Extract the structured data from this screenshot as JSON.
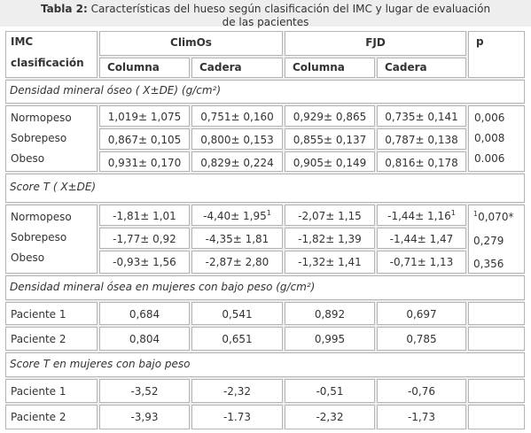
{
  "caption": {
    "label": "Tabla 2:",
    "text": "Características del hueso  según  clasificación del IMC y lugar de evaluación",
    "text2": "de las pacientes"
  },
  "header": {
    "imc": "IMC",
    "clasificacion": "clasificación",
    "climos": "ClimOs",
    "fjd": "FJD",
    "p": "p",
    "columna": "Columna",
    "cadera": "Cadera"
  },
  "sections": {
    "dmo_title": "Densidad  mineral óseo ( X±DE) (g/cm²)",
    "score_title": "Score T ( X±DE)",
    "bajo_title": "Densidad mineral ósea en mujeres con bajo peso (g/cm²)",
    "score_bajo_title": "Score T en mujeres con bajo peso"
  },
  "categories": [
    "Normopeso",
    "Sobrepeso",
    "Obeso"
  ],
  "dmo": {
    "climos_columna": [
      "1,019± 1,075",
      "0,867± 0,105",
      "0,931± 0,170"
    ],
    "climos_cadera": [
      "0,751± 0,160",
      "0,800± 0,153",
      "0,829± 0,224"
    ],
    "fjd_columna": [
      "0,929± 0,865",
      "0,855± 0,137",
      "0,905± 0,149"
    ],
    "fjd_cadera": [
      "0,735± 0,141",
      "0,787± 0,138",
      "0,816± 0,178"
    ],
    "p": [
      "0,006",
      "0,008",
      "0.006"
    ]
  },
  "score": {
    "climos_columna": [
      "-1,81± 1,01",
      "-1,77± 0,92",
      "-0,93± 1,56"
    ],
    "climos_cadera": [
      "-4,40± 1,95",
      "-4,35± 1,81",
      "-2,87± 2,80"
    ],
    "climos_cadera_sup": "1",
    "fjd_columna": [
      "-2,07± 1,15",
      "-1,82± 1,39",
      "-1,32± 1,41"
    ],
    "fjd_cadera": [
      "-1,44± 1,16",
      "-1,44± 1,47",
      "-0,71± 1,13"
    ],
    "fjd_cadera_sup": "1",
    "p_sup": "1",
    "p": [
      "0,070*",
      "0,279",
      "0,356"
    ]
  },
  "bajo_peso": {
    "pac1": {
      "label": "Paciente 1",
      "values": [
        "0,684",
        "0,541",
        "0,892",
        "0,697"
      ]
    },
    "pac2": {
      "label": "Paciente 2",
      "values": [
        "0,804",
        "0,651",
        "0,995",
        "0,785"
      ]
    }
  },
  "score_bajo": {
    "pac1": {
      "label": "Paciente 1",
      "values": [
        "-3,52",
        "-2,32",
        "-0,51",
        "-0,76"
      ]
    },
    "pac2": {
      "label": "Paciente 2",
      "values": [
        "-3,93",
        "-1.73",
        "-2,32",
        "-1,73"
      ]
    }
  }
}
